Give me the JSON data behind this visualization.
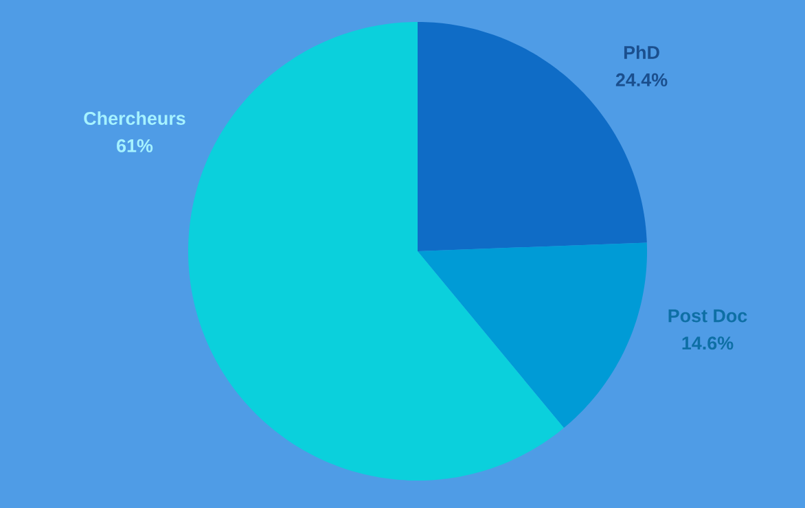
{
  "chart_data": {
    "type": "pie",
    "categories": [
      "PhD",
      "Post Doc",
      "Chercheurs"
    ],
    "values": [
      24.4,
      14.6,
      61
    ],
    "value_labels": [
      "24.4%",
      "14.6%",
      "61%"
    ],
    "colors": [
      "#0f6cc6",
      "#009bd6",
      "#0bd0dc"
    ]
  }
}
